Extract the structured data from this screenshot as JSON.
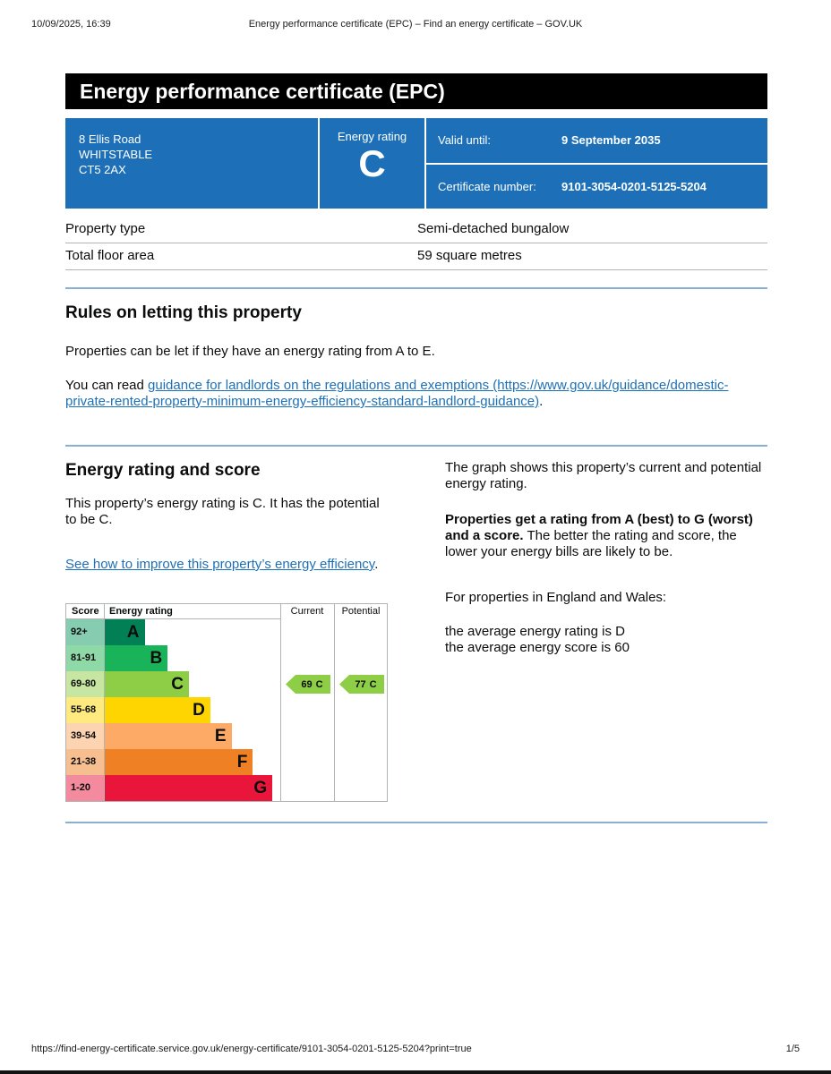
{
  "print_header": {
    "datetime": "10/09/2025, 16:39",
    "title": "Energy performance certificate (EPC) – Find an energy certificate – GOV.UK"
  },
  "banner": {
    "title": "Energy performance certificate (EPC)"
  },
  "summary_box": {
    "address_lines": [
      "8 Ellis Road",
      "WHITSTABLE",
      "CT5 2AX"
    ],
    "rating_label": "Energy rating",
    "rating_value": "C",
    "valid_until_label": "Valid until:",
    "valid_until_value": "9 September 2035",
    "certificate_number_label": "Certificate number:",
    "certificate_number_value": "9101-3054-0201-5125-5204"
  },
  "property_table": {
    "rows": [
      {
        "label": "Property type",
        "value": "Semi-detached bungalow"
      },
      {
        "label": "Total floor area",
        "value": "59 square metres"
      }
    ]
  },
  "letting_section": {
    "heading": "Rules on letting this property",
    "paragraph1": "Properties can be let if they have an energy rating from A to E.",
    "paragraph2_prefix": "You can read ",
    "link_text": "guidance for landlords on the regulations and exemptions (https://www.gov.uk/guidance/domestic-private-rented-property-minimum-energy-efficiency-standard-landlord-guidance)",
    "paragraph2_suffix": "."
  },
  "rating_section": {
    "heading": "Energy rating and score",
    "intro": "This property’s energy rating is C. It has the potential to be C.",
    "improve_link": "See how to improve this property’s energy efficiency",
    "improve_suffix": "."
  },
  "chart_data": {
    "type": "bar",
    "subtype": "epc-energy-rating-bands",
    "headers": {
      "score": "Score",
      "rating": "Energy rating",
      "current": "Current",
      "potential": "Potential"
    },
    "bands": [
      {
        "score": "92+",
        "letter": "A",
        "color": "#008054",
        "tint": "#86ccb1",
        "width_pct": 23
      },
      {
        "score": "81-91",
        "letter": "B",
        "color": "#19b459",
        "tint": "#8fd9a9",
        "width_pct": 36
      },
      {
        "score": "69-80",
        "letter": "C",
        "color": "#8dce46",
        "tint": "#c6e6a2",
        "width_pct": 48
      },
      {
        "score": "55-68",
        "letter": "D",
        "color": "#ffd500",
        "tint": "#ffea7f",
        "width_pct": 60
      },
      {
        "score": "39-54",
        "letter": "E",
        "color": "#fcaa65",
        "tint": "#fdd4b1",
        "width_pct": 72
      },
      {
        "score": "21-38",
        "letter": "F",
        "color": "#ef8023",
        "tint": "#f7bf90",
        "width_pct": 84
      },
      {
        "score": "1-20",
        "letter": "G",
        "color": "#e9153b",
        "tint": "#f48a9d",
        "width_pct": 95
      }
    ],
    "current": {
      "value": 69,
      "letter": "C",
      "band_index": 2,
      "color": "#8dce46"
    },
    "potential": {
      "value": 77,
      "letter": "C",
      "band_index": 2,
      "color": "#8dce46"
    }
  },
  "graph_notes": {
    "p1": "The graph shows this property’s current and potential energy rating.",
    "p2_bold": "Properties get a rating from A (best) to G (worst) and a score.",
    "p2_rest": "The better the rating and score, the lower your energy bills are likely to be.",
    "p3": "For properties in England and Wales:",
    "p4_line1": "the average energy rating is D",
    "p4_line2": "the average energy score is 60"
  },
  "print_footer": {
    "url": "https://find-energy-certificate.service.gov.uk/energy-certificate/9101-3054-0201-5125-5204?print=true",
    "page": "1/5"
  },
  "colors": {
    "govuk_blue": "#1d70b8",
    "banner_black": "#000000",
    "link": "#1d70b8",
    "border_grey": "#b1b4b6"
  }
}
